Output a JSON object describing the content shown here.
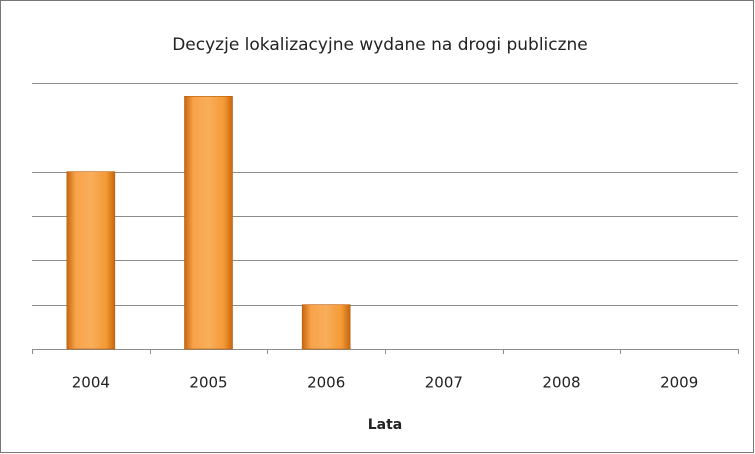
{
  "chart_data": {
    "type": "bar",
    "title": "Decyzje lokalizacyjne wydane na drogi publiczne",
    "x_label": "Lata",
    "categories": [
      "2004",
      "2005",
      "2006",
      "2007",
      "2008",
      "2009"
    ],
    "values": [
      4,
      5.7,
      1,
      0,
      0,
      0
    ],
    "color": "#f39a34",
    "ylim": [
      0,
      6
    ],
    "yticks": [
      0,
      1,
      2,
      3,
      4,
      6
    ],
    "grid": true
  }
}
